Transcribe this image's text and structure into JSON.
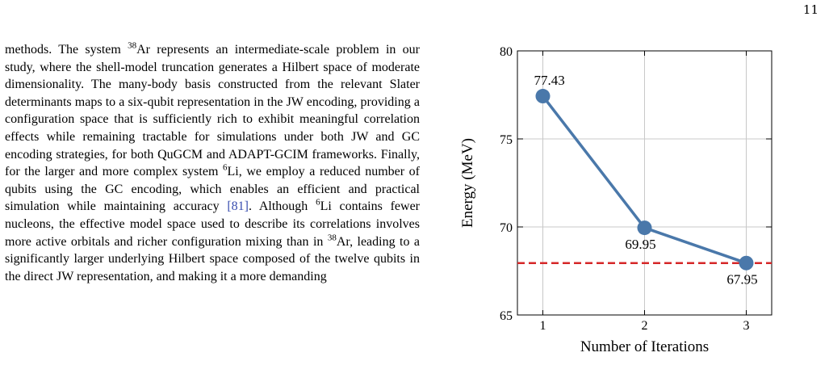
{
  "page": {
    "number": "11"
  },
  "body_text": {
    "segments": [
      {
        "text": "methods. The system ",
        "sup": false
      },
      {
        "text": "38",
        "sup": true
      },
      {
        "text": "Ar represents an intermediate-scale problem in our study, where the shell-model truncation generates a Hilbert space of moderate dimensionality. The many-body basis constructed from the relevant Slater determinants maps to a six-qubit representation in the JW encoding, providing a configuration space that is sufficiently rich to exhibit meaningful correlation effects while remaining tractable for simulations under both JW and GC encoding strategies, for both QuGCM and ADAPT-GCIM frameworks. Finally, for the larger and more complex system ",
        "sup": false
      },
      {
        "text": "6",
        "sup": true
      },
      {
        "text": "Li, we employ a reduced number of qubits using the GC encoding, which enables an efficient and practical simulation while maintaining accuracy ",
        "sup": false
      },
      {
        "text": "[81]",
        "sup": false,
        "cite": true
      },
      {
        "text": ". Although ",
        "sup": false
      },
      {
        "text": "6",
        "sup": true
      },
      {
        "text": "Li contains fewer nucleons, the effective model space used to describe its correlations involves more active orbitals and richer configuration mixing than in ",
        "sup": false
      },
      {
        "text": "38",
        "sup": true
      },
      {
        "text": "Ar, leading to a significantly larger underlying Hilbert space composed of the twelve qubits in the direct JW representation, and making it a more demanding",
        "sup": false
      }
    ]
  },
  "chart_data": {
    "type": "line",
    "xlabel": "Number of Iterations",
    "ylabel": "Energy (MeV)",
    "xlim": [
      0.75,
      3.25
    ],
    "ylim": [
      65,
      80
    ],
    "x_ticks": [
      1,
      2,
      3
    ],
    "y_ticks": [
      65,
      70,
      75,
      80
    ],
    "grid": true,
    "series": [
      {
        "x": [
          1,
          2,
          3
        ],
        "y": [
          77.43,
          69.95,
          67.95
        ],
        "labels": [
          "77.43",
          "69.95",
          "67.95"
        ],
        "color": "#4a78aa"
      }
    ],
    "reference_line": {
      "y": 67.95,
      "color": "#d62728",
      "style": "dashed"
    }
  }
}
